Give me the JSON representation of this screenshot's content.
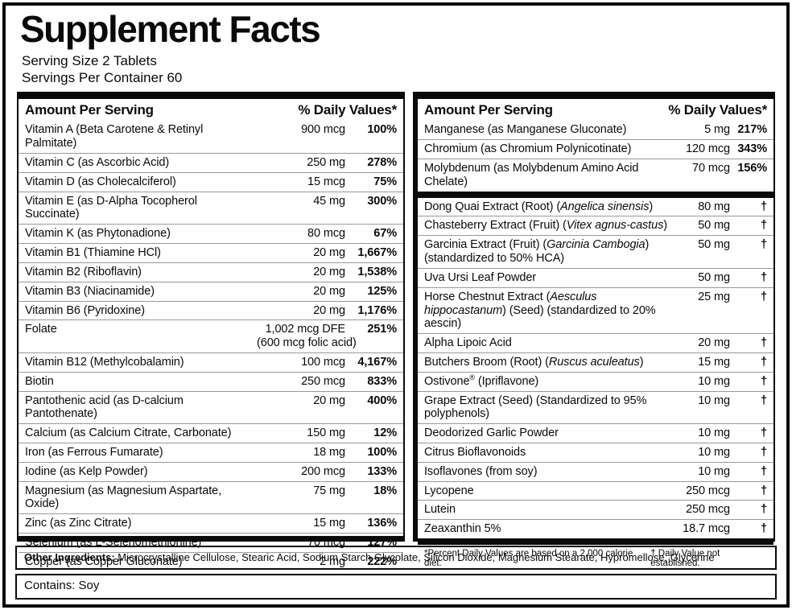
{
  "title": "Supplement Facts",
  "serving": {
    "size": "Serving Size 2 Tablets",
    "per_container": "Servings Per Container 60"
  },
  "colors": {
    "ink": "#0a0a0a",
    "row_divider": "#999999",
    "background": "#ffffff"
  },
  "columns": {
    "left": {
      "header_amount": "Amount Per Serving",
      "header_dv": "% Daily Values*",
      "rows": [
        {
          "name": [
            [
              "",
              "Vitamin A (Beta Carotene & Retinyl Palmitate)"
            ]
          ],
          "amt": "900 mcg",
          "dv": "100%"
        },
        {
          "name": [
            [
              "",
              "Vitamin C (as Ascorbic Acid)"
            ]
          ],
          "amt": "250 mg",
          "dv": "278%"
        },
        {
          "name": [
            [
              "",
              "Vitamin D (as Cholecalciferol)"
            ]
          ],
          "amt": "15 mcg",
          "dv": "75%"
        },
        {
          "name": [
            [
              "",
              "Vitamin E (as D-Alpha Tocopherol Succinate)"
            ]
          ],
          "amt": "45 mg",
          "dv": "300%"
        },
        {
          "name": [
            [
              "",
              "Vitamin K (as Phytonadione)"
            ]
          ],
          "amt": "80 mcg",
          "dv": "67%"
        },
        {
          "name": [
            [
              "",
              "Vitamin B1 (Thiamine HCl)"
            ]
          ],
          "amt": "20 mg",
          "dv": "1,667%"
        },
        {
          "name": [
            [
              "",
              "Vitamin B2 (Riboflavin)"
            ]
          ],
          "amt": "20 mg",
          "dv": "1,538%"
        },
        {
          "name": [
            [
              "",
              "Vitamin B3 (Niacinamide)"
            ]
          ],
          "amt": "20 mg",
          "dv": "125%"
        },
        {
          "name": [
            [
              "",
              "Vitamin B6 (Pyridoxine)"
            ]
          ],
          "amt": "20 mg",
          "dv": "1,176%"
        },
        {
          "name": [
            [
              "",
              "Folate"
            ]
          ],
          "amt": "1,002 mcg DFE",
          "amt2": "(600 mcg folic acid)",
          "dv": "251%"
        },
        {
          "name": [
            [
              "",
              "Vitamin B12 (Methylcobalamin)"
            ]
          ],
          "amt": "100 mcg",
          "dv": "4,167%"
        },
        {
          "name": [
            [
              "",
              "Biotin"
            ]
          ],
          "amt": "250 mcg",
          "dv": "833%"
        },
        {
          "name": [
            [
              "",
              "Pantothenic acid (as D-calcium Pantothenate)"
            ]
          ],
          "amt": "20 mg",
          "dv": "400%"
        },
        {
          "name": [
            [
              "",
              "Calcium (as Calcium Citrate, Carbonate)"
            ]
          ],
          "amt": "150 mg",
          "dv": "12%"
        },
        {
          "name": [
            [
              "",
              "Iron (as Ferrous Fumarate)"
            ]
          ],
          "amt": "18 mg",
          "dv": "100%"
        },
        {
          "name": [
            [
              "",
              "Iodine (as Kelp Powder)"
            ]
          ],
          "amt": "200 mcg",
          "dv": "133%"
        },
        {
          "name": [
            [
              "",
              "Magnesium (as Magnesium Aspartate, Oxide)"
            ]
          ],
          "amt": "75 mg",
          "dv": "18%"
        },
        {
          "name": [
            [
              "",
              "Zinc (as Zinc Citrate)"
            ]
          ],
          "amt": "15 mg",
          "dv": "136%"
        },
        {
          "name": [
            [
              "",
              "Selenium (as L-Selenomethionine)"
            ]
          ],
          "amt": "70 mcg",
          "dv": "127%"
        },
        {
          "name": [
            [
              "",
              "Copper (as Copper Gluconate)"
            ]
          ],
          "amt": "2 mg",
          "dv": "222%"
        }
      ]
    },
    "right": {
      "header_amount": "Amount Per Serving",
      "header_dv": "% Daily Values*",
      "rows": [
        {
          "name": [
            [
              "",
              "Manganese (as Manganese Gluconate)"
            ]
          ],
          "amt": "5 mg",
          "dv": "217%"
        },
        {
          "name": [
            [
              "",
              "Chromium (as Chromium Polynicotinate)"
            ]
          ],
          "amt": "120 mcg",
          "dv": "343%"
        },
        {
          "name": [
            [
              "",
              "Molybdenum (as Molybdenum Amino Acid Chelate)"
            ]
          ],
          "amt": "70 mcg",
          "dv": "156%"
        },
        {
          "divider_before": true,
          "name": [
            [
              "",
              "Dong Quai Extract (Root) ("
            ],
            [
              "i",
              "Angelica sinensis"
            ],
            [
              "",
              ")"
            ]
          ],
          "amt": "80 mg",
          "dv": "†"
        },
        {
          "name": [
            [
              "",
              "Chasteberry Extract (Fruit) ("
            ],
            [
              "i",
              "Vitex agnus-castus"
            ],
            [
              "",
              ")"
            ]
          ],
          "amt": "50 mg",
          "dv": "†"
        },
        {
          "name": [
            [
              "",
              "Garcinia Extract (Fruit) ("
            ],
            [
              "i",
              "Garcinia Cambogia"
            ],
            [
              "",
              ") (standardized to 50% HCA)"
            ]
          ],
          "amt": "50 mg",
          "dv": "†"
        },
        {
          "name": [
            [
              "",
              "Uva Ursi Leaf Powder"
            ]
          ],
          "amt": "50 mg",
          "dv": "†"
        },
        {
          "name": [
            [
              "",
              "Horse Chestnut Extract ("
            ],
            [
              "i",
              "Aesculus hippocastanum"
            ],
            [
              "",
              ") (Seed) (standardized to 20% aescin)"
            ]
          ],
          "amt": "25 mg",
          "dv": "†"
        },
        {
          "name": [
            [
              "",
              "Alpha Lipoic Acid"
            ]
          ],
          "amt": "20 mg",
          "dv": "†"
        },
        {
          "name": [
            [
              "",
              "Butchers Broom (Root) ("
            ],
            [
              "i",
              "Ruscus aculeatus"
            ],
            [
              "",
              ")"
            ]
          ],
          "amt": "15 mg",
          "dv": "†"
        },
        {
          "name": [
            [
              "",
              "Ostivone"
            ],
            [
              "sup",
              "®"
            ],
            [
              "",
              " (Ipriflavone)"
            ]
          ],
          "amt": "10 mg",
          "dv": "†"
        },
        {
          "name": [
            [
              "",
              "Grape Extract (Seed) (Standardized to 95% polyphenols)"
            ]
          ],
          "amt": "10 mg",
          "dv": "†"
        },
        {
          "name": [
            [
              "",
              "Deodorized Garlic Powder"
            ]
          ],
          "amt": "10 mg",
          "dv": "†"
        },
        {
          "name": [
            [
              "",
              "Citrus Bioflavonoids"
            ]
          ],
          "amt": "10 mg",
          "dv": "†"
        },
        {
          "name": [
            [
              "",
              "Isoflavones (from soy)"
            ]
          ],
          "amt": "10 mg",
          "dv": "†"
        },
        {
          "name": [
            [
              "",
              "Lycopene"
            ]
          ],
          "amt": "250 mcg",
          "dv": "†"
        },
        {
          "name": [
            [
              "",
              "Lutein"
            ]
          ],
          "amt": "250 mcg",
          "dv": "†"
        },
        {
          "name": [
            [
              "",
              "Zeaxanthin 5%"
            ]
          ],
          "amt": "18.7 mcg",
          "dv": "†"
        }
      ]
    }
  },
  "footnotes": {
    "left": "*Percent Daily Values are based on a 2,000 calorie diet.",
    "right": "† Daily Value not established."
  },
  "other_ingredients": {
    "label": "Other Ingredients:",
    "text": " Microcrystalline Cellulose, Stearic Acid, Sodium Starch Glycolate, Silicon Dioxide, Magnesium Stearate, Hypromellose, Glycerine"
  },
  "contains": "Contains: Soy"
}
